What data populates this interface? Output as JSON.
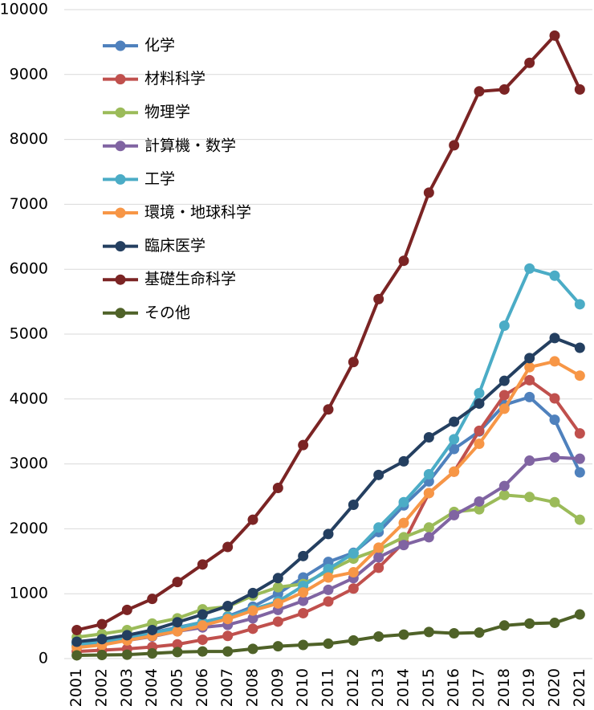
{
  "chart_data": {
    "type": "line",
    "categories": [
      "2001",
      "2002",
      "2003",
      "2004",
      "2005",
      "2006",
      "2007",
      "2008",
      "2009",
      "2010",
      "2011",
      "2012",
      "2013",
      "2014",
      "2015",
      "2016",
      "2017",
      "2018",
      "2019",
      "2020",
      "2021"
    ],
    "ylim": [
      0,
      10000
    ],
    "yticks": [
      0,
      1000,
      2000,
      3000,
      4000,
      5000,
      6000,
      7000,
      8000,
      9000,
      10000
    ],
    "grid": true,
    "legend": "upper-left",
    "series": [
      {
        "name": "化学",
        "color": "#4f81bd",
        "values": [
          240,
          270,
          330,
          400,
          480,
          560,
          650,
          800,
          1000,
          1250,
          1490,
          1630,
          1950,
          2360,
          2730,
          3230,
          3500,
          3910,
          4030,
          3680,
          2870
        ]
      },
      {
        "name": "材料科学",
        "color": "#c0504d",
        "values": [
          110,
          130,
          150,
          180,
          220,
          290,
          350,
          460,
          570,
          700,
          880,
          1080,
          1400,
          1790,
          2550,
          2880,
          3510,
          4060,
          4290,
          4010,
          3470
        ]
      },
      {
        "name": "物理学",
        "color": "#9bbb59",
        "values": [
          330,
          380,
          440,
          540,
          620,
          760,
          800,
          970,
          1100,
          1150,
          1350,
          1540,
          1680,
          1870,
          2020,
          2260,
          2300,
          2520,
          2490,
          2410,
          2140
        ]
      },
      {
        "name": "計算機・数学",
        "color": "#8064a2",
        "values": [
          200,
          230,
          280,
          340,
          420,
          480,
          520,
          620,
          750,
          890,
          1060,
          1240,
          1560,
          1750,
          1870,
          2210,
          2420,
          2660,
          3050,
          3100,
          3080
        ]
      },
      {
        "name": "工学",
        "color": "#4bacc6",
        "values": [
          220,
          250,
          310,
          390,
          470,
          560,
          640,
          760,
          880,
          1120,
          1380,
          1620,
          2020,
          2410,
          2840,
          3380,
          4090,
          5130,
          6010,
          5900,
          5460
        ]
      },
      {
        "name": "環境・地球科学",
        "color": "#f79646",
        "values": [
          170,
          210,
          280,
          350,
          420,
          510,
          610,
          740,
          850,
          1020,
          1250,
          1330,
          1710,
          2090,
          2550,
          2880,
          3310,
          3850,
          4490,
          4580,
          4360
        ]
      },
      {
        "name": "臨床医学",
        "color": "#243f60",
        "values": [
          260,
          300,
          360,
          440,
          560,
          680,
          810,
          1010,
          1240,
          1580,
          1920,
          2370,
          2830,
          3040,
          3410,
          3650,
          3930,
          4280,
          4630,
          4940,
          4790
        ]
      },
      {
        "name": "基礎生命科学",
        "color": "#7b2424",
        "values": [
          440,
          530,
          750,
          920,
          1180,
          1450,
          1720,
          2140,
          2630,
          3290,
          3840,
          4570,
          5540,
          6130,
          7180,
          7910,
          8740,
          8770,
          9180,
          9600,
          8770
        ]
      },
      {
        "name": "その他",
        "color": "#4f6228",
        "values": [
          50,
          55,
          60,
          80,
          100,
          110,
          110,
          150,
          190,
          210,
          230,
          280,
          340,
          370,
          410,
          390,
          400,
          510,
          540,
          550,
          680
        ]
      }
    ]
  }
}
